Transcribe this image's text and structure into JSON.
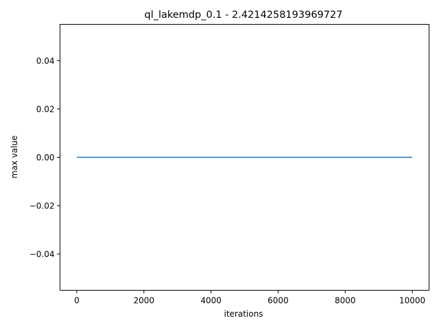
{
  "chart_data": {
    "type": "line",
    "title": "ql_lakemdp_0.1 - 2.4214258193969727",
    "xlabel": "iterations",
    "ylabel": "max value",
    "xlim": [
      -500,
      10500
    ],
    "ylim": [
      -0.055,
      0.055
    ],
    "xticks": [
      0,
      2000,
      4000,
      6000,
      8000,
      10000
    ],
    "xtick_labels": [
      "0",
      "2000",
      "4000",
      "6000",
      "8000",
      "10000"
    ],
    "yticks": [
      -0.04,
      -0.02,
      0.0,
      0.02,
      0.04
    ],
    "ytick_labels": [
      "−0.04",
      "−0.02",
      "0.00",
      "0.02",
      "0.04"
    ],
    "grid": false,
    "series": [
      {
        "color": "#1f77b4",
        "x": [
          0,
          10000
        ],
        "y": [
          0.0,
          0.0
        ]
      }
    ]
  }
}
